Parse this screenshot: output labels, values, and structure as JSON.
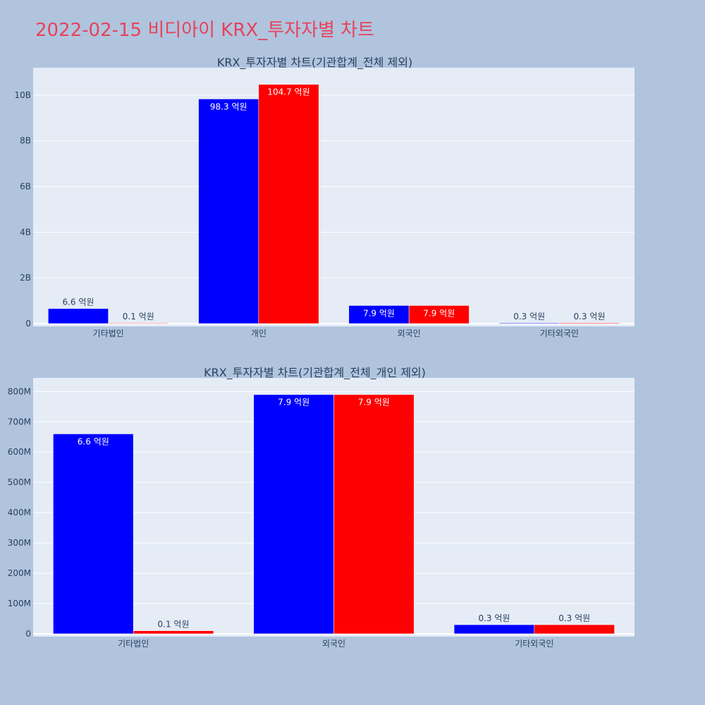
{
  "page_title": "2022-02-15 비디아이 KRX_투자자별 차트",
  "colors": {
    "series_1": "#0000ff",
    "series_2": "#ff0000",
    "title": "#e8425b",
    "background": "#b0c4de",
    "plot_bg": "#e5ecf6"
  },
  "chart_data": [
    {
      "type": "bar",
      "title": "KRX_투자자별 차트(기관합계_전체 제외)",
      "categories": [
        "기타법인",
        "개인",
        "외국인",
        "기타외국인"
      ],
      "ylim": [
        0,
        11200000000
      ],
      "yticks": [
        0,
        2000000000,
        4000000000,
        6000000000,
        8000000000,
        10000000000
      ],
      "ytick_labels": [
        "0",
        "2B",
        "4B",
        "6B",
        "8B",
        "10B"
      ],
      "grid": true,
      "series": [
        {
          "color": "#0000ff",
          "values": [
            660000000,
            9830000000,
            790000000,
            30000000
          ],
          "labels": [
            "6.6 억원",
            "98.3 억원",
            "7.9 억원",
            "0.3 억원"
          ]
        },
        {
          "color": "#ff0000",
          "values": [
            10000000,
            10470000000,
            790000000,
            30000000
          ],
          "labels": [
            "0.1 억원",
            "104.7 억원",
            "7.9 억원",
            "0.3 억원"
          ]
        }
      ]
    },
    {
      "type": "bar",
      "title": "KRX_투자자별 차트(기관합계_전체_개인 제외)",
      "categories": [
        "기타법인",
        "외국인",
        "기타외국인"
      ],
      "ylim": [
        0,
        845000000
      ],
      "yticks": [
        0,
        100000000,
        200000000,
        300000000,
        400000000,
        500000000,
        600000000,
        700000000,
        800000000
      ],
      "ytick_labels": [
        "0",
        "100M",
        "200M",
        "300M",
        "400M",
        "500M",
        "600M",
        "700M",
        "800M"
      ],
      "grid": true,
      "series": [
        {
          "color": "#0000ff",
          "values": [
            660000000,
            790000000,
            30000000
          ],
          "labels": [
            "6.6 억원",
            "7.9 억원",
            "0.3 억원"
          ]
        },
        {
          "color": "#ff0000",
          "values": [
            10000000,
            790000000,
            30000000
          ],
          "labels": [
            "0.1 억원",
            "7.9 억원",
            "0.3 억원"
          ]
        }
      ]
    }
  ]
}
